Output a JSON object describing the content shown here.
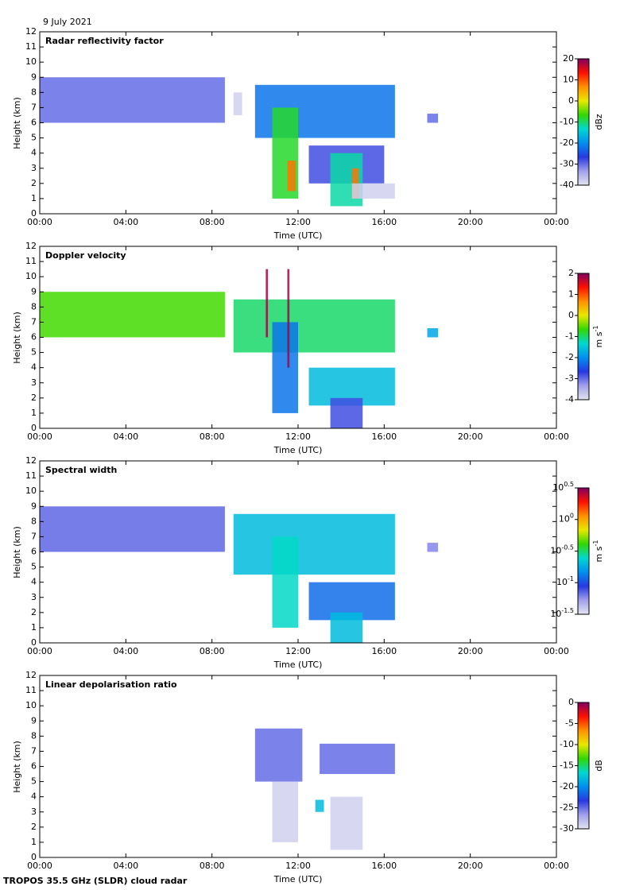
{
  "date": "9 July 2021",
  "footer": "TROPOS 35.5 GHz (SLDR) cloud radar",
  "colormap": [
    "#e4e4f0",
    "#a0a0ec",
    "#2838e0",
    "#0090f0",
    "#00d8d0",
    "#30d800",
    "#e8e800",
    "#ff9000",
    "#ff1000",
    "#800060"
  ],
  "chart_data": [
    {
      "type": "heatmap",
      "title": "Radar reflectivity factor",
      "xlabel": "Time (UTC)",
      "ylabel": "Height (km)",
      "xlim": [
        0,
        24
      ],
      "xticks": [
        {
          "value": 0,
          "label": "00:00"
        },
        {
          "value": 4,
          "label": "04:00"
        },
        {
          "value": 8,
          "label": "08:00"
        },
        {
          "value": 12,
          "label": "12:00"
        },
        {
          "value": 16,
          "label": "16:00"
        },
        {
          "value": 20,
          "label": "20:00"
        },
        {
          "value": 24,
          "label": "00:00"
        }
      ],
      "ylim": [
        0,
        12
      ],
      "yticks": [
        0,
        1,
        2,
        3,
        4,
        5,
        6,
        7,
        8,
        9,
        10,
        11,
        12
      ],
      "colorbar_label": "dBz",
      "clim": [
        -40,
        20
      ],
      "cticks": [
        20,
        10,
        0,
        -10,
        -20,
        -30,
        -40
      ],
      "cells": [
        {
          "x0": 0,
          "x1": 8.6,
          "y0": 6,
          "y1": 9,
          "value": -30
        },
        {
          "x0": 9,
          "x1": 9.4,
          "y0": 6.5,
          "y1": 8,
          "value": -38
        },
        {
          "x0": 10,
          "x1": 16.5,
          "y0": 5,
          "y1": 8.5,
          "value": -22
        },
        {
          "x0": 10.8,
          "x1": 12,
          "y0": 1,
          "y1": 7,
          "value": -8
        },
        {
          "x0": 11.5,
          "x1": 11.9,
          "y0": 1.5,
          "y1": 3.5,
          "value": 8
        },
        {
          "x0": 12.5,
          "x1": 16,
          "y0": 2,
          "y1": 4.5,
          "value": -28
        },
        {
          "x0": 13.5,
          "x1": 15,
          "y0": 0.5,
          "y1": 4,
          "value": -12
        },
        {
          "x0": 14.5,
          "x1": 14.8,
          "y0": 1,
          "y1": 3,
          "value": 8
        },
        {
          "x0": 14.5,
          "x1": 16.5,
          "y0": 1,
          "y1": 2,
          "value": -38
        },
        {
          "x0": 18,
          "x1": 18.5,
          "y0": 6,
          "y1": 6.6,
          "value": -30
        }
      ]
    },
    {
      "type": "heatmap",
      "title": "Doppler velocity",
      "xlabel": "Time (UTC)",
      "ylabel": "Height (km)",
      "xlim": [
        0,
        24
      ],
      "xticks": [
        {
          "value": 0,
          "label": "00:00"
        },
        {
          "value": 4,
          "label": "04:00"
        },
        {
          "value": 8,
          "label": "08:00"
        },
        {
          "value": 12,
          "label": "12:00"
        },
        {
          "value": 16,
          "label": "16:00"
        },
        {
          "value": 20,
          "label": "20:00"
        },
        {
          "value": 24,
          "label": "00:00"
        }
      ],
      "ylim": [
        0,
        12
      ],
      "yticks": [
        0,
        1,
        2,
        3,
        4,
        5,
        6,
        7,
        8,
        9,
        10,
        11,
        12
      ],
      "colorbar_label": "m s^-1",
      "clim": [
        -4,
        2
      ],
      "cticks": [
        2,
        1,
        0,
        -1,
        -2,
        -3,
        -4
      ],
      "cells": [
        {
          "x0": 0,
          "x1": 8.6,
          "y0": 6,
          "y1": 9,
          "value": -0.6
        },
        {
          "x0": 9,
          "x1": 16.5,
          "y0": 5,
          "y1": 8.5,
          "value": -1
        },
        {
          "x0": 10.8,
          "x1": 12,
          "y0": 1,
          "y1": 7,
          "value": -2.2
        },
        {
          "x0": 12.5,
          "x1": 16.5,
          "y0": 1.5,
          "y1": 4,
          "value": -1.6
        },
        {
          "x0": 13.5,
          "x1": 15,
          "y0": 0,
          "y1": 2,
          "value": -2.8
        },
        {
          "x0": 10.5,
          "x1": 10.6,
          "y0": 6,
          "y1": 10.5,
          "value": 1.8
        },
        {
          "x0": 11.5,
          "x1": 11.6,
          "y0": 4,
          "y1": 10.5,
          "value": 1.8
        },
        {
          "x0": 18,
          "x1": 18.5,
          "y0": 6,
          "y1": 6.6,
          "value": -1.8
        }
      ]
    },
    {
      "type": "heatmap",
      "title": "Spectral width",
      "xlabel": "Time (UTC)",
      "ylabel": "Height (km)",
      "xlim": [
        0,
        24
      ],
      "xticks": [
        {
          "value": 0,
          "label": "00:00"
        },
        {
          "value": 4,
          "label": "04:00"
        },
        {
          "value": 8,
          "label": "08:00"
        },
        {
          "value": 12,
          "label": "12:00"
        },
        {
          "value": 16,
          "label": "16:00"
        },
        {
          "value": 20,
          "label": "20:00"
        },
        {
          "value": 24,
          "label": "00:00"
        }
      ],
      "ylim": [
        0,
        12
      ],
      "yticks": [
        0,
        1,
        2,
        3,
        4,
        5,
        6,
        7,
        8,
        9,
        10,
        11,
        12
      ],
      "colorbar_label": "m s^-1",
      "clog": true,
      "clim": [
        0.0316,
        3.162
      ],
      "cticks": [
        {
          "value": 3.162,
          "label": "10^0.5"
        },
        {
          "value": 1,
          "label": "10^0"
        },
        {
          "value": 0.316,
          "label": "10^-0.5"
        },
        {
          "value": 0.1,
          "label": "10^-1"
        },
        {
          "value": 0.0316,
          "label": "10^-1.5"
        }
      ],
      "cells": [
        {
          "x0": 0,
          "x1": 8.6,
          "y0": 6,
          "y1": 9,
          "value": 0.07
        },
        {
          "x0": 9,
          "x1": 16.5,
          "y0": 4.5,
          "y1": 8.5,
          "value": 0.2
        },
        {
          "x0": 10.8,
          "x1": 12,
          "y0": 1,
          "y1": 7,
          "value": 0.25
        },
        {
          "x0": 12.5,
          "x1": 16.5,
          "y0": 1.5,
          "y1": 4,
          "value": 0.12
        },
        {
          "x0": 13.5,
          "x1": 15,
          "y0": 0,
          "y1": 2,
          "value": 0.2
        },
        {
          "x0": 18,
          "x1": 18.5,
          "y0": 6,
          "y1": 6.6,
          "value": 0.06
        }
      ]
    },
    {
      "type": "heatmap",
      "title": "Linear depolarisation ratio",
      "xlabel": "Time (UTC)",
      "ylabel": "Height (km)",
      "xlim": [
        0,
        24
      ],
      "xticks": [
        {
          "value": 0,
          "label": "00:00"
        },
        {
          "value": 4,
          "label": "04:00"
        },
        {
          "value": 8,
          "label": "08:00"
        },
        {
          "value": 12,
          "label": "12:00"
        },
        {
          "value": 16,
          "label": "16:00"
        },
        {
          "value": 20,
          "label": "20:00"
        },
        {
          "value": 24,
          "label": "00:00"
        }
      ],
      "ylim": [
        0,
        12
      ],
      "yticks": [
        0,
        1,
        2,
        3,
        4,
        5,
        6,
        7,
        8,
        9,
        10,
        11,
        12
      ],
      "colorbar_label": "dB",
      "clim": [
        -30,
        0
      ],
      "cticks": [
        0,
        -5,
        -10,
        -15,
        -20,
        -25,
        -30
      ],
      "cells": [
        {
          "x0": 10,
          "x1": 12.2,
          "y0": 5,
          "y1": 8.5,
          "value": -25
        },
        {
          "x0": 13,
          "x1": 16.5,
          "y0": 5.5,
          "y1": 7.5,
          "value": -25
        },
        {
          "x0": 10.8,
          "x1": 12,
          "y0": 1,
          "y1": 5,
          "value": -29
        },
        {
          "x0": 13.5,
          "x1": 15,
          "y0": 0.5,
          "y1": 4,
          "value": -29
        },
        {
          "x0": 12.8,
          "x1": 13.2,
          "y0": 3,
          "y1": 3.8,
          "value": -18
        }
      ]
    }
  ]
}
